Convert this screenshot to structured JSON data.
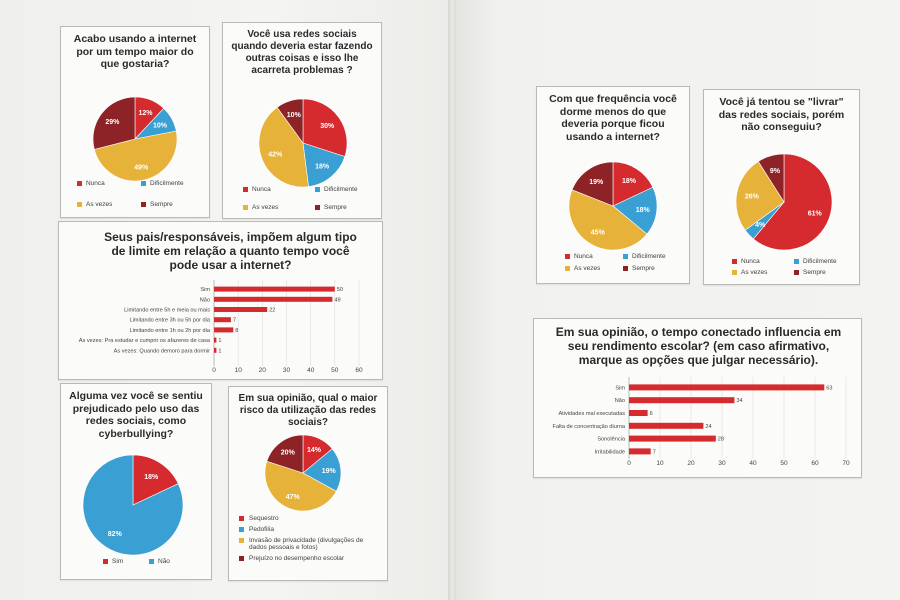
{
  "colors": {
    "red": "#d52a2e",
    "blue": "#3a9fd3",
    "yellow": "#e7b23a",
    "maroon": "#8e2327",
    "bar": "#d52a2e"
  },
  "chart_data": [
    {
      "type": "pie",
      "title": "Acabo usando a internet por um tempo maior do que gostaria?",
      "slices": [
        {
          "label": "Nunca",
          "value": 12,
          "text": "12%"
        },
        {
          "label": "Dificilmente",
          "value": 10,
          "text": "10%"
        },
        {
          "label": "As vezes",
          "value": 49,
          "text": "49%"
        },
        {
          "label": "Sempre",
          "value": 29,
          "text": "29%"
        }
      ]
    },
    {
      "type": "pie",
      "title": "Você usa redes sociais quando deveria estar fazendo outras coisas e isso lhe acarreta problemas ?",
      "slices": [
        {
          "label": "Nunca",
          "value": 30,
          "text": "30%"
        },
        {
          "label": "Dificilmente",
          "value": 18,
          "text": "18%"
        },
        {
          "label": "As vezes",
          "value": 42,
          "text": "42%"
        },
        {
          "label": "Sempre",
          "value": 10,
          "text": "10%"
        }
      ]
    },
    {
      "type": "bar",
      "orientation": "horizontal",
      "title": "Seus pais/responsáveis, impõem algum tipo de limite em relação a quanto tempo você pode usar a internet?",
      "categories": [
        "Sim",
        "Não",
        "Limitando entre 5h e meia ou mais",
        "Limitando entre 3h ou 5h por dia",
        "Limitando entre 1h ou 2h por dia",
        "As vezes: Pra estudar e cumprir os afazeres de casa",
        "As vezes: Quando demoro para dormir"
      ],
      "values": [
        50,
        49,
        22,
        7,
        8,
        1,
        1
      ],
      "value_labels": [
        "50",
        "49",
        "22",
        "7",
        "8",
        "1",
        "1"
      ],
      "xticks": [
        "0",
        "10",
        "20",
        "30",
        "40",
        "50",
        "60"
      ],
      "xlim": [
        0,
        60
      ]
    },
    {
      "type": "pie",
      "title": "Alguma vez você se sentiu prejudicado pelo uso das redes sociais, como cyberbullying?",
      "slices": [
        {
          "label": "Sim",
          "value": 18,
          "text": "18%"
        },
        {
          "label": "Não",
          "value": 82,
          "text": "82%"
        }
      ]
    },
    {
      "type": "pie",
      "title": "Em sua opinião, qual o maior risco da utilização das redes sociais?",
      "slices": [
        {
          "label": "Sequestro",
          "value": 14,
          "text": "14%"
        },
        {
          "label": "Pedofilia",
          "value": 19,
          "text": "19%"
        },
        {
          "label": "Invasão de privacidade (divulgações de dados pessoais e fotos)",
          "value": 47,
          "text": "47%"
        },
        {
          "label": "Prejuízo no desempenho escolar",
          "value": 20,
          "text": "20%"
        }
      ]
    },
    {
      "type": "pie",
      "title": "Com que frequência você dorme menos do que deveria porque ficou usando a internet?",
      "slices": [
        {
          "label": "Nunca",
          "value": 18,
          "text": "18%"
        },
        {
          "label": "Dificilmente",
          "value": 18,
          "text": "18%"
        },
        {
          "label": "As vezes",
          "value": 45,
          "text": "45%"
        },
        {
          "label": "Sempre",
          "value": 19,
          "text": "19%"
        }
      ]
    },
    {
      "type": "pie",
      "title": "Você já tentou se \"livrar\" das redes sociais, porém não conseguiu?",
      "slices": [
        {
          "label": "Nunca",
          "value": 61,
          "text": "61%"
        },
        {
          "label": "Dificilmente",
          "value": 4,
          "text": "4%"
        },
        {
          "label": "As vezes",
          "value": 26,
          "text": "26%"
        },
        {
          "label": "Sempre",
          "value": 9,
          "text": "9%"
        }
      ]
    },
    {
      "type": "bar",
      "orientation": "horizontal",
      "title": "Em sua opinião, o tempo conectado influencia em seu rendimento escolar? (em caso afirmativo, marque as opções que julgar necessário).",
      "categories": [
        "Sim",
        "Não",
        "Atividades mal executadas",
        "Falta de concentração diurna",
        "Sonolência",
        "Irritabilidade"
      ],
      "values": [
        63,
        34,
        6,
        24,
        28,
        7
      ],
      "value_labels": [
        "63",
        "34",
        "6",
        "24",
        "28",
        "7"
      ],
      "xticks": [
        "0",
        "10",
        "20",
        "30",
        "40",
        "50",
        "60",
        "70"
      ],
      "xlim": [
        0,
        70
      ]
    }
  ]
}
